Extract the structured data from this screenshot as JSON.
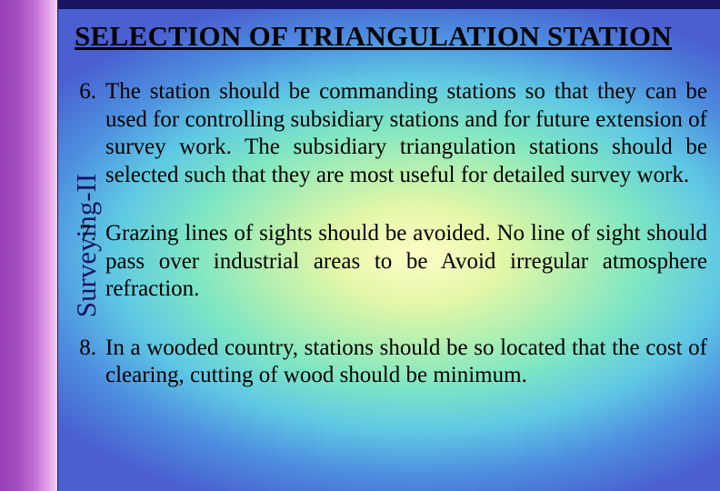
{
  "slide": {
    "background": {
      "type": "radial-gradient",
      "center": "58% 52%",
      "stops": [
        "#fdfdc8",
        "#e4f7a8",
        "#b7f0b0",
        "#7fe6c3",
        "#5fc9e4",
        "#4d8de0",
        "#4a5fd0"
      ]
    },
    "leftbar_gradient": [
      "#9a3fb8",
      "#a44dc0",
      "#c26fd4",
      "#e4a5e8",
      "#f1d2f0"
    ],
    "topstrip_color": "#1a1464",
    "sidebar_label": "Surveying-II",
    "sidebar_fontsize": 31,
    "sidebar_color": "#1a1464",
    "title": "SELECTION OF TRIANGULATION STATION",
    "title_fontsize": 31,
    "title_color": "#000000",
    "title_underline": true,
    "body_fontsize": 25,
    "body_color": "#000000",
    "body_align": "justify",
    "items": [
      {
        "num": "6.",
        "text": "The station should be commanding stations so that they can be used for controlling subsidiary stations and for future extension of survey work. The subsidiary triangulation stations should be selected such that they are most useful for detailed survey work."
      },
      {
        "num": "7.",
        "text": "Grazing lines of sights should be avoided. No line of sight should pass over industrial areas to be Avoid irregular atmosphere refraction."
      },
      {
        "num": "8.",
        "text": "In a wooded country, stations should be so located that the cost of clearing, cutting of wood should be minimum."
      }
    ]
  }
}
